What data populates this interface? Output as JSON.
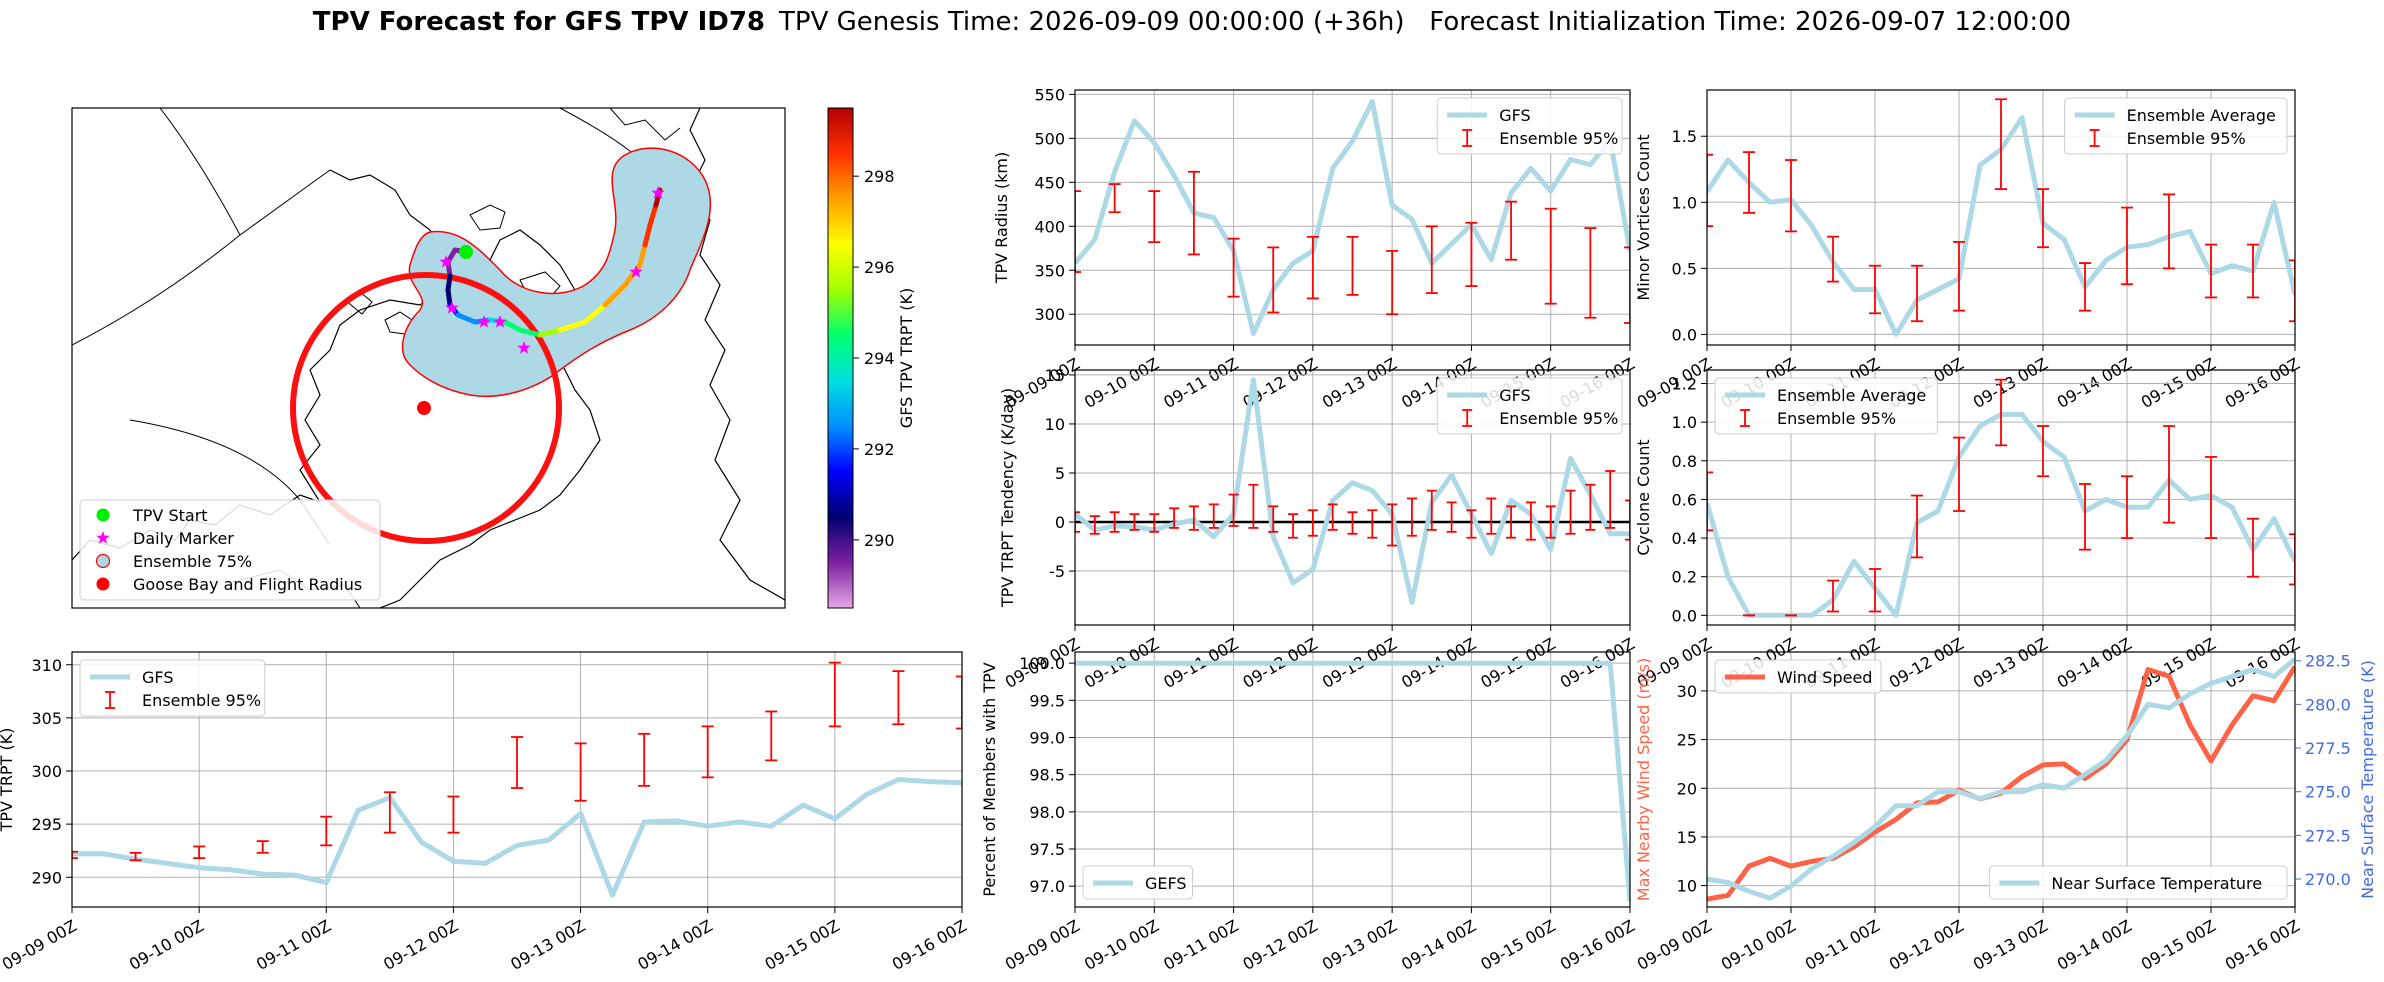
{
  "figure": {
    "title_bold": "TPV Forecast for GFS TPV ID78",
    "title_rest": "TPV Genesis Time: 2026-09-09 00:00:00 (+36h)   Forecast Initialization Time: 2026-09-07 12:00:00"
  },
  "colors": {
    "gfs": "#add8e6",
    "ensemble": "#ff0000",
    "wind": "#ff6347",
    "temp_axis": "#4169e1",
    "wind_axis": "#ff6347",
    "zero_line": "#000000",
    "grid": "#b0b0b0"
  },
  "time_ticks": [
    "09-09 00Z",
    "09-10 00Z",
    "09-11 00Z",
    "09-12 00Z",
    "09-13 00Z",
    "09-14 00Z",
    "09-15 00Z",
    "09-16 00Z"
  ],
  "chart_data": [
    {
      "id": "map",
      "type": "scatter",
      "colorbar": {
        "label": "GFS TPV TRPT (K)",
        "ticks": [
          290,
          292,
          294,
          296,
          298
        ],
        "range": [
          288.5,
          299.5
        ],
        "colors": [
          "#e6a8e6",
          "#7d20a0",
          "#000070",
          "#0000ff",
          "#0090ff",
          "#00e0e0",
          "#00ff70",
          "#a0ff00",
          "#ffff00",
          "#ffa000",
          "#ff3000",
          "#b00000"
        ]
      },
      "legend": [
        {
          "label": "TPV Start",
          "marker": "circle",
          "color": "#00ee00"
        },
        {
          "label": "Daily Marker",
          "marker": "star",
          "color": "#ff00ff"
        },
        {
          "label": "Ensemble 75%",
          "marker": "circle-outline",
          "color": "#add8e6"
        },
        {
          "label": "Goose Bay and Flight Radius",
          "marker": "circle",
          "color": "#ff0000"
        }
      ],
      "legend_loc": "lower-left"
    },
    {
      "id": "radius",
      "type": "line",
      "ylabel": "TPV Radius (km)",
      "ylim": [
        265,
        555
      ],
      "yticks": [
        300,
        350,
        400,
        450,
        500,
        550
      ],
      "legend": [
        "GFS",
        "Ensemble 95%"
      ],
      "legend_loc": "top-right",
      "series": [
        {
          "name": "GFS",
          "values": [
            358,
            385,
            462,
            520,
            495,
            458,
            415,
            410,
            372,
            278,
            328,
            358,
            372,
            466,
            497,
            542,
            424,
            408,
            358,
            380,
            402,
            362,
            438,
            466,
            440,
            476,
            470,
            498,
            372
          ]
        }
      ],
      "ens_x": [
        0.0,
        0.5,
        1.0,
        1.5,
        2.0,
        2.5,
        3.0,
        3.5,
        4.0,
        4.5,
        5.0,
        5.5,
        6.0,
        6.5,
        7.0
      ],
      "ens_low": [
        348,
        416,
        382,
        368,
        320,
        302,
        318,
        322,
        300,
        324,
        332,
        362,
        312,
        296,
        290
      ],
      "ens_high": [
        440,
        448,
        440,
        462,
        386,
        376,
        388,
        388,
        372,
        400,
        404,
        428,
        420,
        398,
        376
      ]
    },
    {
      "id": "minor",
      "type": "line",
      "ylabel": "Minor Vortices Count",
      "ylim": [
        -0.08,
        1.85
      ],
      "yticks": [
        0.0,
        0.5,
        1.0,
        1.5
      ],
      "legend": [
        "Ensemble Average",
        "Ensemble 95%"
      ],
      "legend_loc": "top-right",
      "series": [
        {
          "name": "Ensemble Average",
          "values": [
            1.08,
            1.32,
            1.15,
            1.0,
            1.02,
            0.82,
            0.55,
            0.34,
            0.34,
            0.0,
            0.26,
            0.34,
            0.42,
            1.28,
            1.4,
            1.64,
            0.84,
            0.72,
            0.36,
            0.56,
            0.66,
            0.68,
            0.74,
            0.78,
            0.46,
            0.52,
            0.48,
            1.0,
            0.3
          ]
        }
      ],
      "ens_x": [
        0.0,
        0.5,
        1.0,
        1.5,
        2.0,
        2.5,
        3.0,
        3.5,
        4.0,
        4.5,
        5.0,
        5.5,
        6.0,
        6.5,
        7.0
      ],
      "ens_low": [
        0.82,
        0.92,
        0.78,
        0.4,
        0.16,
        0.1,
        0.18,
        1.1,
        0.66,
        0.18,
        0.38,
        0.5,
        0.28,
        0.28,
        0.1
      ],
      "ens_high": [
        1.36,
        1.38,
        1.32,
        0.74,
        0.52,
        0.52,
        0.7,
        1.78,
        1.1,
        0.54,
        0.96,
        1.06,
        0.68,
        0.68,
        0.56
      ]
    },
    {
      "id": "tendency",
      "type": "line",
      "ylabel": "TPV TRPT Tendency (K/day)",
      "ylim": [
        -10.5,
        15.5
      ],
      "yticks": [
        -5,
        0,
        5,
        10,
        15
      ],
      "legend": [
        "GFS",
        "Ensemble 95%"
      ],
      "legend_loc": "top-right",
      "zero_line": 0,
      "series": [
        {
          "name": "GFS",
          "values": [
            0.8,
            -0.8,
            -0.4,
            -0.5,
            -0.8,
            -0.2,
            0.2,
            -1.5,
            0.8,
            14.5,
            -1.5,
            -6.2,
            -4.8,
            2.2,
            4.0,
            3.2,
            0.8,
            -8.2,
            2.0,
            4.8,
            0.8,
            -3.2,
            2.2,
            0.8,
            -2.8,
            6.5,
            2.8,
            -1.2,
            -1.2
          ]
        }
      ],
      "ens_x": [
        0.0,
        0.25,
        0.5,
        0.75,
        1.0,
        1.25,
        1.5,
        1.75,
        2.0,
        2.25,
        2.5,
        2.75,
        3.0,
        3.25,
        3.5,
        3.75,
        4.0,
        4.25,
        4.5,
        4.75,
        5.0,
        5.25,
        5.5,
        5.75,
        6.0,
        6.25,
        6.5,
        6.75,
        7.0
      ],
      "ens_low": [
        -1.0,
        -1.2,
        -1.0,
        -0.8,
        -1.0,
        -0.6,
        -0.8,
        -0.6,
        -0.4,
        -0.6,
        -1.0,
        -1.6,
        -1.4,
        -0.8,
        -1.2,
        -1.6,
        -2.4,
        -1.4,
        -0.8,
        -1.0,
        -1.6,
        -1.2,
        -1.6,
        -1.8,
        -1.6,
        -1.2,
        -0.8,
        -0.6,
        -1.8
      ],
      "ens_high": [
        1.0,
        0.6,
        1.0,
        0.8,
        0.8,
        1.4,
        1.6,
        1.8,
        2.8,
        3.8,
        1.6,
        0.8,
        1.2,
        1.8,
        1.0,
        1.2,
        1.8,
        2.4,
        3.2,
        2.0,
        1.2,
        2.4,
        1.6,
        2.0,
        1.6,
        3.2,
        3.8,
        5.2,
        2.2
      ]
    },
    {
      "id": "cyclone",
      "type": "line",
      "ylabel": "Cyclone Count",
      "ylim": [
        -0.05,
        1.27
      ],
      "yticks": [
        0.0,
        0.2,
        0.4,
        0.6,
        0.8,
        1.0,
        1.2
      ],
      "legend": [
        "Ensemble Average",
        "Ensemble 95%"
      ],
      "legend_loc": "top-left",
      "series": [
        {
          "name": "Ensemble Average",
          "values": [
            0.58,
            0.2,
            0.0,
            0.0,
            0.0,
            0.0,
            0.08,
            0.28,
            0.14,
            0.0,
            0.48,
            0.54,
            0.82,
            0.98,
            1.04,
            1.04,
            0.9,
            0.82,
            0.54,
            0.6,
            0.56,
            0.56,
            0.7,
            0.6,
            0.62,
            0.56,
            0.34,
            0.5,
            0.28
          ]
        }
      ],
      "ens_x": [
        0.0,
        0.5,
        1.0,
        1.5,
        2.0,
        2.5,
        3.0,
        3.5,
        4.0,
        4.5,
        5.0,
        5.5,
        6.0,
        6.5,
        7.0
      ],
      "ens_low": [
        0.44,
        0.0,
        0.0,
        0.02,
        0.02,
        0.3,
        0.54,
        0.88,
        0.72,
        0.34,
        0.4,
        0.48,
        0.4,
        0.2,
        0.16
      ],
      "ens_high": [
        0.74,
        0.0,
        0.0,
        0.18,
        0.24,
        0.62,
        0.92,
        1.22,
        0.98,
        0.68,
        0.72,
        0.98,
        0.82,
        0.5,
        0.42
      ]
    },
    {
      "id": "trpt",
      "type": "line",
      "ylabel": "TPV TRPT (K)",
      "ylim": [
        287.2,
        311.2
      ],
      "yticks": [
        290,
        295,
        300,
        305,
        310
      ],
      "legend": [
        "GFS",
        "Ensemble 95%"
      ],
      "legend_loc": "top-left",
      "series": [
        {
          "name": "GFS",
          "values": [
            292.2,
            292.2,
            291.7,
            291.3,
            290.9,
            290.7,
            290.3,
            290.2,
            289.5,
            296.3,
            297.5,
            293.3,
            291.5,
            291.3,
            293.0,
            293.5,
            296.0,
            288.3,
            295.2,
            295.3,
            294.8,
            295.2,
            294.8,
            296.8,
            295.5,
            297.8,
            299.2,
            299.0,
            298.9
          ]
        }
      ],
      "ens_x": [
        0.0,
        0.5,
        1.0,
        1.5,
        2.0,
        2.5,
        3.0,
        3.5,
        4.0,
        4.5,
        5.0,
        5.5,
        6.0,
        6.5,
        7.0
      ],
      "ens_low": [
        291.8,
        291.6,
        291.8,
        292.3,
        293.0,
        294.2,
        294.2,
        298.4,
        297.2,
        298.6,
        299.4,
        301.0,
        304.2,
        304.4,
        304.0
      ],
      "ens_high": [
        292.4,
        292.3,
        292.9,
        293.4,
        295.7,
        298.0,
        297.6,
        303.2,
        302.6,
        303.5,
        304.2,
        305.6,
        310.2,
        309.4,
        308.9
      ]
    },
    {
      "id": "members",
      "type": "line",
      "ylabel": "Percent of Members with TPV",
      "ylim": [
        96.72,
        100.15
      ],
      "yticks": [
        97.0,
        97.5,
        98.0,
        98.5,
        99.0,
        99.5,
        100.0
      ],
      "legend": [
        "GEFS"
      ],
      "legend_loc": "bottom-left",
      "series": [
        {
          "name": "GEFS",
          "values": [
            100,
            100,
            100,
            100,
            100,
            100,
            100,
            100,
            100,
            100,
            100,
            100,
            100,
            100,
            100,
            100,
            100,
            100,
            100,
            100,
            100,
            100,
            100,
            100,
            100,
            100,
            100,
            100,
            96.8
          ]
        }
      ]
    },
    {
      "id": "wind_temp",
      "type": "line",
      "ylabel": "Max Nearby Wind Speed (m/s)",
      "ylabel_right": "Near Surface Temperature (K)",
      "ylim": [
        7.8,
        34.0
      ],
      "yticks": [
        10,
        15,
        20,
        25,
        30
      ],
      "ylim_right": [
        268.4,
        283.0
      ],
      "yticks_right": [
        270.0,
        272.5,
        275.0,
        277.5,
        280.0,
        282.5
      ],
      "legend": [
        "Wind Speed"
      ],
      "legend_right": [
        "Near Surface Temperature"
      ],
      "legend_loc": "top-left",
      "legend_right_loc": "bottom-right",
      "series": [
        {
          "name": "Wind Speed",
          "axis": "left",
          "values": [
            8.6,
            9.0,
            12.0,
            12.8,
            12.0,
            12.5,
            12.8,
            14.0,
            15.5,
            16.8,
            18.5,
            18.6,
            19.8,
            18.9,
            19.5,
            21.2,
            22.4,
            22.5,
            21.0,
            22.5,
            25.0,
            32.2,
            31.5,
            26.5,
            22.8,
            26.5,
            29.5,
            29.0,
            32.5
          ]
        },
        {
          "name": "Near Surface Temperature",
          "axis": "right",
          "values": [
            270.0,
            269.8,
            269.3,
            268.9,
            269.6,
            270.6,
            271.3,
            272.1,
            273.0,
            274.2,
            274.2,
            275.0,
            275.0,
            274.6,
            275.0,
            275.0,
            275.4,
            275.2,
            276.0,
            276.8,
            278.2,
            280.0,
            279.8,
            280.6,
            281.2,
            281.6,
            282.0,
            281.6,
            282.6
          ]
        }
      ]
    }
  ]
}
